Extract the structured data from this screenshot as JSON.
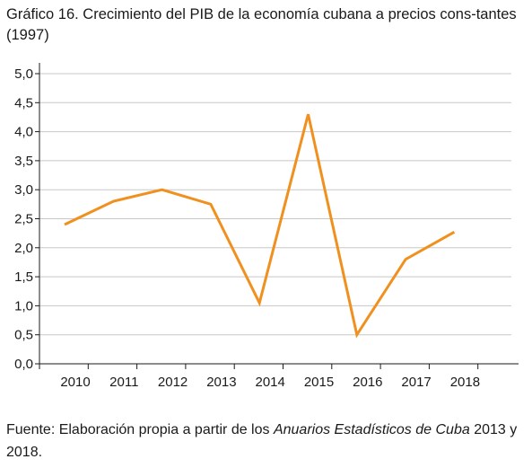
{
  "header": {
    "title": "Gráfico 16. Crecimiento del PIB de la economía cubana a precios cons-tantes (1997)"
  },
  "footer": {
    "source_prefix": "Fuente: Elaboración propia a partir de los ",
    "source_italic": "Anuarios Estadísticos de Cuba",
    "source_suffix": " 2013 y 2018."
  },
  "chart_data": {
    "type": "line",
    "title": "Gráfico 16. Crecimiento del PIB de la economía cubana a precios cons-tantes (1997)",
    "xlabel": "",
    "ylabel": "",
    "categories": [
      "2010",
      "2011",
      "2012",
      "2013",
      "2014",
      "2015",
      "2016",
      "2017",
      "2018"
    ],
    "series": [
      {
        "values": [
          2.4,
          2.8,
          3.0,
          2.75,
          1.05,
          4.3,
          0.5,
          1.8,
          2.27
        ]
      }
    ],
    "ylim": [
      0,
      5
    ],
    "yticks": [
      "0,0",
      "0,5",
      "1,0",
      "1,5",
      "2,0",
      "2,5",
      "3,0",
      "3,5",
      "4,0",
      "4,5",
      "5,0"
    ],
    "grid": "horizontal",
    "legend": "none",
    "colors": {
      "line": "#f0901e",
      "grid": "#c8c8c8",
      "axis": "#1a1a1a"
    }
  }
}
